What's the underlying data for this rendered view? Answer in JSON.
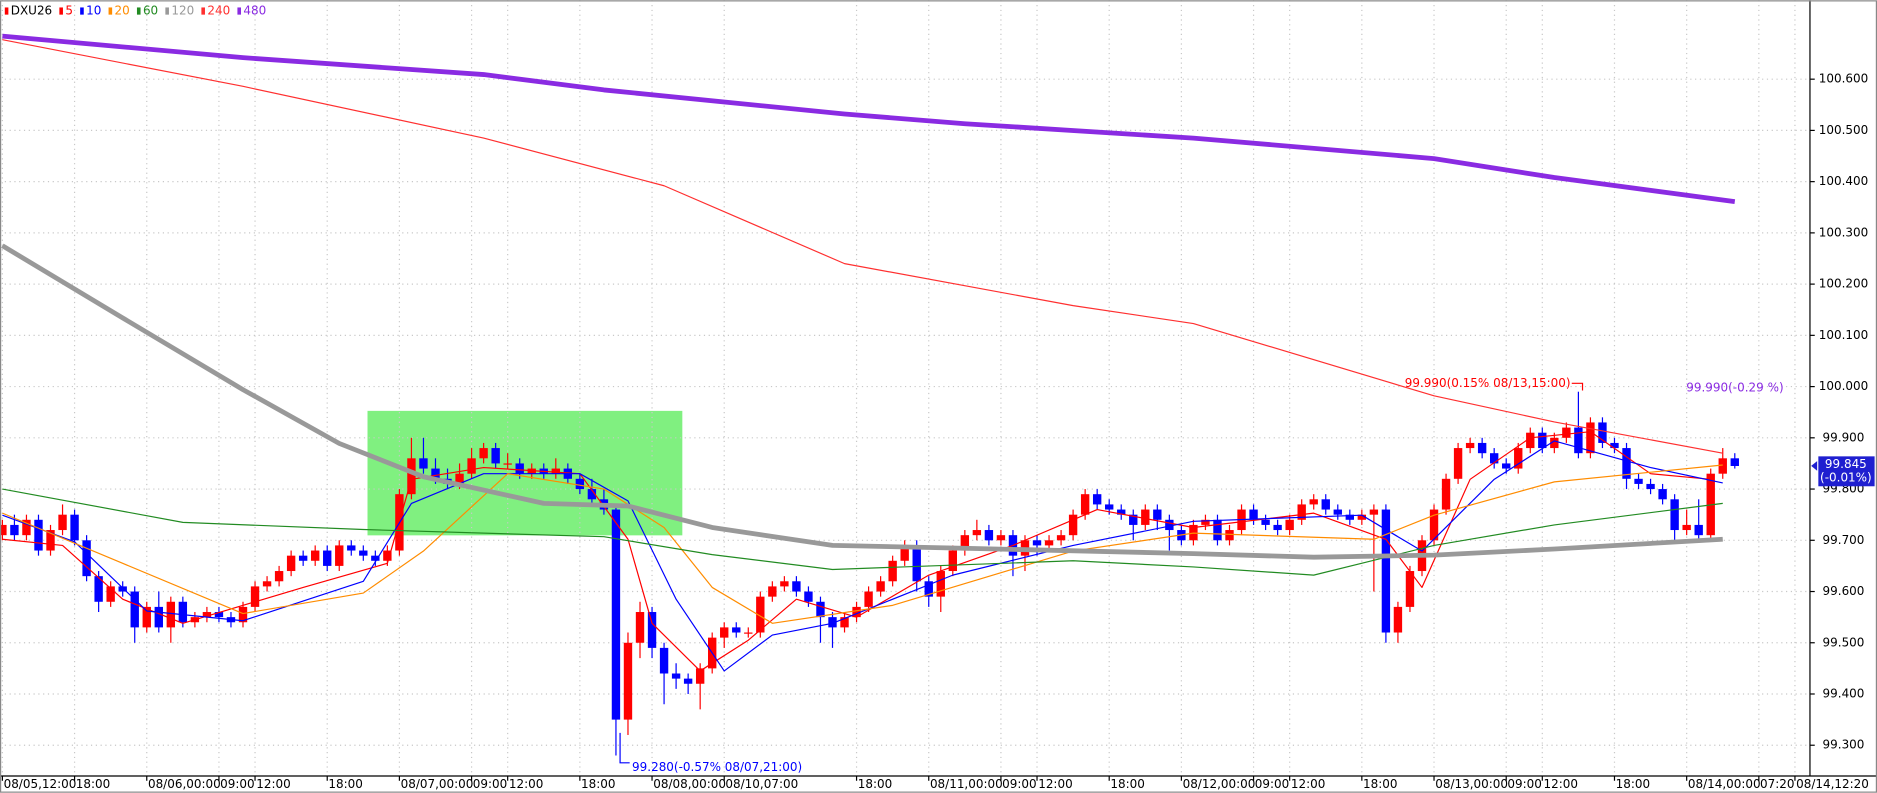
{
  "chart_data": {
    "type": "candlestick",
    "name": "DXU26",
    "up_color": "#ff0000",
    "down_color": "#0000ff",
    "legend": "top-left",
    "grid": true,
    "ylim": [
      99.24,
      100.754
    ],
    "yticks": [
      {
        "value": 99.3,
        "label": "99.300"
      },
      {
        "value": 99.4,
        "label": "99.400"
      },
      {
        "value": 99.5,
        "label": "99.500"
      },
      {
        "value": 99.6,
        "label": "99.600"
      },
      {
        "value": 99.7,
        "label": "99.700"
      },
      {
        "value": 99.8,
        "label": "99.800"
      },
      {
        "value": 99.9,
        "label": "99.900"
      },
      {
        "value": 100.0,
        "label": "100.000"
      },
      {
        "value": 100.1,
        "label": "100.100"
      },
      {
        "value": 100.2,
        "label": "100.200"
      },
      {
        "value": 100.3,
        "label": "100.300"
      },
      {
        "value": 100.4,
        "label": "100.400"
      },
      {
        "value": 100.5,
        "label": "100.500"
      },
      {
        "value": 100.6,
        "label": "100.600"
      }
    ],
    "categories": [
      "08/05,12:00",
      null,
      null,
      null,
      null,
      null,
      "18:00",
      null,
      null,
      null,
      null,
      null,
      "08/06,00:00",
      null,
      null,
      null,
      null,
      null,
      "09:00",
      null,
      null,
      "12:00",
      null,
      null,
      null,
      null,
      null,
      "18:00",
      null,
      null,
      null,
      null,
      null,
      "08/07,00:00",
      null,
      null,
      null,
      null,
      null,
      "09:00",
      null,
      null,
      "12:00",
      null,
      null,
      null,
      null,
      null,
      "18:00",
      null,
      null,
      null,
      null,
      null,
      "08/08,00:00",
      null,
      null,
      null,
      null,
      null,
      "08/10,07:00",
      null,
      null,
      null,
      null,
      null,
      null,
      null,
      null,
      null,
      null,
      "18:00",
      null,
      null,
      null,
      null,
      null,
      "08/11,00:00",
      null,
      null,
      null,
      null,
      null,
      "09:00",
      null,
      null,
      "12:00",
      null,
      null,
      null,
      null,
      null,
      "18:00",
      null,
      null,
      null,
      null,
      null,
      "08/12,00:00",
      null,
      null,
      null,
      null,
      null,
      "09:00",
      null,
      null,
      "12:00",
      null,
      null,
      null,
      null,
      null,
      "18:00",
      null,
      null,
      null,
      null,
      null,
      "08/13,00:00",
      null,
      null,
      null,
      null,
      null,
      "09:00",
      null,
      null,
      "12:00",
      null,
      null,
      null,
      null,
      null,
      "18:00",
      null,
      null,
      null,
      null,
      null,
      "08/14,00:00",
      null,
      null,
      null,
      null,
      null,
      "07:20",
      null,
      null,
      "08/14,12:20"
    ],
    "ohlc": [
      [
        99.71,
        99.74,
        99.7,
        99.73
      ],
      [
        99.73,
        99.75,
        99.7,
        99.71
      ],
      [
        99.71,
        99.75,
        99.7,
        99.74
      ],
      [
        99.74,
        99.75,
        99.67,
        99.68
      ],
      [
        99.68,
        99.73,
        99.67,
        99.72
      ],
      [
        99.72,
        99.77,
        99.71,
        99.75
      ],
      [
        99.75,
        99.76,
        99.69,
        99.7
      ],
      [
        99.7,
        99.71,
        99.62,
        99.63
      ],
      [
        99.63,
        99.64,
        99.56,
        99.58
      ],
      [
        99.58,
        99.62,
        99.57,
        99.61
      ],
      [
        99.61,
        99.62,
        99.59,
        99.6
      ],
      [
        99.6,
        99.61,
        99.5,
        99.53
      ],
      [
        99.53,
        99.58,
        99.52,
        99.57
      ],
      [
        99.57,
        99.6,
        99.52,
        99.53
      ],
      [
        99.53,
        99.59,
        99.5,
        99.58
      ],
      [
        99.58,
        99.59,
        99.53,
        99.54
      ],
      [
        99.54,
        99.56,
        99.53,
        99.55
      ],
      [
        99.55,
        99.57,
        99.54,
        99.56
      ],
      [
        99.56,
        99.57,
        99.54,
        99.55
      ],
      [
        99.55,
        99.56,
        99.53,
        99.54
      ],
      [
        99.54,
        99.58,
        99.53,
        99.57
      ],
      [
        99.57,
        99.62,
        99.56,
        99.61
      ],
      [
        99.61,
        99.63,
        99.6,
        99.62
      ],
      [
        99.62,
        99.65,
        99.61,
        99.64
      ],
      [
        99.64,
        99.68,
        99.63,
        99.67
      ],
      [
        99.67,
        99.68,
        99.65,
        99.66
      ],
      [
        99.66,
        99.69,
        99.65,
        99.68
      ],
      [
        99.68,
        99.69,
        99.64,
        99.65
      ],
      [
        99.65,
        99.7,
        99.64,
        99.69
      ],
      [
        99.69,
        99.7,
        99.67,
        99.68
      ],
      [
        99.68,
        99.69,
        99.66,
        99.67
      ],
      [
        99.67,
        99.68,
        99.65,
        99.66
      ],
      [
        99.66,
        99.69,
        99.65,
        99.68
      ],
      [
        99.68,
        99.8,
        99.67,
        99.79
      ],
      [
        99.79,
        99.9,
        99.78,
        99.86
      ],
      [
        99.86,
        99.9,
        99.83,
        99.84
      ],
      [
        99.84,
        99.86,
        99.81,
        99.82
      ],
      [
        99.82,
        99.84,
        99.8,
        99.81
      ],
      [
        99.81,
        99.85,
        99.8,
        99.83
      ],
      [
        99.83,
        99.88,
        99.82,
        99.86
      ],
      [
        99.86,
        99.89,
        99.85,
        99.88
      ],
      [
        99.88,
        99.89,
        99.84,
        99.85
      ],
      [
        99.85,
        99.87,
        99.84,
        99.85
      ],
      [
        99.85,
        99.86,
        99.82,
        99.83
      ],
      [
        99.83,
        99.85,
        99.82,
        99.84
      ],
      [
        99.84,
        99.85,
        99.82,
        99.83
      ],
      [
        99.83,
        99.86,
        99.82,
        99.84
      ],
      [
        99.84,
        99.85,
        99.81,
        99.82
      ],
      [
        99.82,
        99.83,
        99.79,
        99.8
      ],
      [
        99.8,
        99.82,
        99.77,
        99.78
      ],
      [
        99.78,
        99.8,
        99.75,
        99.76
      ],
      [
        99.76,
        99.77,
        99.28,
        99.35
      ],
      [
        99.35,
        99.52,
        99.32,
        99.5
      ],
      [
        99.5,
        99.58,
        99.47,
        99.56
      ],
      [
        99.56,
        99.57,
        99.47,
        99.49
      ],
      [
        99.49,
        99.5,
        99.38,
        99.44
      ],
      [
        99.44,
        99.46,
        99.41,
        99.43
      ],
      [
        99.43,
        99.44,
        99.4,
        99.42
      ],
      [
        99.42,
        99.46,
        99.37,
        99.45
      ],
      [
        99.45,
        99.52,
        99.44,
        99.51
      ],
      [
        99.51,
        99.54,
        99.49,
        99.53
      ],
      [
        99.53,
        99.54,
        99.51,
        99.52
      ],
      [
        99.52,
        99.53,
        99.51,
        99.52
      ],
      [
        99.52,
        99.6,
        99.51,
        99.59
      ],
      [
        99.59,
        99.62,
        99.58,
        99.61
      ],
      [
        99.61,
        99.63,
        99.6,
        99.62
      ],
      [
        99.62,
        99.63,
        99.59,
        99.6
      ],
      [
        99.6,
        99.61,
        99.57,
        99.58
      ],
      [
        99.58,
        99.59,
        99.5,
        99.55
      ],
      [
        99.55,
        99.56,
        99.49,
        99.53
      ],
      [
        99.53,
        99.56,
        99.52,
        99.55
      ],
      [
        99.55,
        99.58,
        99.54,
        99.57
      ],
      [
        99.57,
        99.61,
        99.56,
        99.6
      ],
      [
        99.6,
        99.63,
        99.59,
        99.62
      ],
      [
        99.62,
        99.67,
        99.61,
        99.66
      ],
      [
        99.66,
        99.7,
        99.65,
        99.69
      ],
      [
        99.69,
        99.7,
        99.6,
        99.62
      ],
      [
        99.62,
        99.63,
        99.57,
        99.59
      ],
      [
        99.59,
        99.65,
        99.56,
        99.64
      ],
      [
        99.64,
        99.69,
        99.63,
        99.68
      ],
      [
        99.68,
        99.72,
        99.67,
        99.71
      ],
      [
        99.71,
        99.74,
        99.7,
        99.72
      ],
      [
        99.72,
        99.73,
        99.69,
        99.7
      ],
      [
        99.7,
        99.72,
        99.69,
        99.71
      ],
      [
        99.71,
        99.72,
        99.63,
        99.67
      ],
      [
        99.67,
        99.71,
        99.64,
        99.7
      ],
      [
        99.7,
        99.71,
        99.67,
        99.69
      ],
      [
        99.69,
        99.71,
        99.68,
        99.7
      ],
      [
        99.7,
        99.72,
        99.69,
        99.71
      ],
      [
        99.71,
        99.76,
        99.7,
        99.75
      ],
      [
        99.75,
        99.8,
        99.74,
        99.79
      ],
      [
        99.79,
        99.8,
        99.76,
        99.77
      ],
      [
        99.77,
        99.78,
        99.75,
        99.76
      ],
      [
        99.76,
        99.77,
        99.74,
        99.75
      ],
      [
        99.75,
        99.76,
        99.7,
        99.73
      ],
      [
        99.73,
        99.77,
        99.72,
        99.76
      ],
      [
        99.76,
        99.77,
        99.72,
        99.74
      ],
      [
        99.74,
        99.75,
        99.68,
        99.72
      ],
      [
        99.72,
        99.73,
        99.69,
        99.7
      ],
      [
        99.7,
        99.74,
        99.69,
        99.73
      ],
      [
        99.73,
        99.75,
        99.72,
        99.74
      ],
      [
        99.74,
        99.75,
        99.69,
        99.7
      ],
      [
        99.7,
        99.73,
        99.69,
        99.72
      ],
      [
        99.72,
        99.77,
        99.71,
        99.76
      ],
      [
        99.76,
        99.77,
        99.73,
        99.74
      ],
      [
        99.74,
        99.75,
        99.72,
        99.73
      ],
      [
        99.73,
        99.74,
        99.71,
        99.72
      ],
      [
        99.72,
        99.75,
        99.71,
        99.74
      ],
      [
        99.74,
        99.78,
        99.73,
        99.77
      ],
      [
        99.77,
        99.79,
        99.76,
        99.78
      ],
      [
        99.78,
        99.79,
        99.75,
        99.76
      ],
      [
        99.76,
        99.77,
        99.74,
        99.75
      ],
      [
        99.75,
        99.76,
        99.73,
        99.74
      ],
      [
        99.74,
        99.76,
        99.73,
        99.75
      ],
      [
        99.75,
        99.77,
        99.6,
        99.76
      ],
      [
        99.76,
        99.77,
        99.5,
        99.52
      ],
      [
        99.52,
        99.58,
        99.5,
        99.57
      ],
      [
        99.57,
        99.65,
        99.56,
        99.64
      ],
      [
        99.64,
        99.71,
        99.63,
        99.7
      ],
      [
        99.7,
        99.77,
        99.69,
        99.76
      ],
      [
        99.76,
        99.83,
        99.75,
        99.82
      ],
      [
        99.82,
        99.89,
        99.81,
        99.88
      ],
      [
        99.88,
        99.9,
        99.87,
        99.89
      ],
      [
        99.89,
        99.9,
        99.86,
        99.87
      ],
      [
        99.87,
        99.88,
        99.84,
        99.85
      ],
      [
        99.85,
        99.86,
        99.83,
        99.84
      ],
      [
        99.84,
        99.89,
        99.83,
        99.88
      ],
      [
        99.88,
        99.92,
        99.87,
        99.91
      ],
      [
        99.91,
        99.92,
        99.87,
        99.88
      ],
      [
        99.88,
        99.91,
        99.87,
        99.9
      ],
      [
        99.9,
        99.93,
        99.89,
        99.92
      ],
      [
        99.92,
        99.99,
        99.86,
        99.87
      ],
      [
        99.87,
        99.94,
        99.86,
        99.93
      ],
      [
        99.93,
        99.94,
        99.88,
        99.89
      ],
      [
        99.89,
        99.9,
        99.87,
        99.88
      ],
      [
        99.88,
        99.89,
        99.8,
        99.82
      ],
      [
        99.82,
        99.83,
        99.8,
        99.81
      ],
      [
        99.81,
        99.82,
        99.79,
        99.8
      ],
      [
        99.8,
        99.81,
        99.77,
        99.78
      ],
      [
        99.78,
        99.79,
        99.7,
        99.72
      ],
      [
        99.72,
        99.76,
        99.71,
        99.73
      ],
      [
        99.73,
        99.78,
        99.7,
        99.71
      ],
      [
        99.71,
        99.84,
        99.7,
        99.83
      ],
      [
        99.83,
        99.88,
        99.82,
        99.86
      ],
      [
        99.86,
        99.87,
        99.84,
        99.845
      ],
      null,
      null,
      null,
      null,
      null
    ],
    "series": [
      {
        "name": "5",
        "color": "#ff0000",
        "line_width": 1,
        "x": [
          0,
          5,
          10,
          15,
          25,
          32,
          34,
          40,
          48,
          52,
          54,
          58,
          62,
          66,
          71,
          77,
          84,
          91,
          99,
          109,
          115,
          118,
          122,
          127,
          132,
          137,
          142
        ],
        "values": [
          99.702,
          99.69,
          99.585,
          99.538,
          99.608,
          99.655,
          99.819,
          99.842,
          99.83,
          99.702,
          99.538,
          99.445,
          99.505,
          99.585,
          99.55,
          99.632,
          99.69,
          99.76,
          99.725,
          99.753,
          99.702,
          99.608,
          99.819,
          99.9,
          99.912,
          99.83,
          99.819
        ]
      },
      {
        "name": "10",
        "color": "#0000ff",
        "line_width": 1,
        "x": [
          0,
          6,
          12,
          20,
          30,
          34,
          40,
          48,
          52,
          56,
          60,
          64,
          69,
          79,
          89,
          99,
          113,
          118,
          124,
          129,
          137,
          143
        ],
        "values": [
          99.749,
          99.697,
          99.562,
          99.543,
          99.62,
          99.772,
          99.83,
          99.83,
          99.777,
          99.585,
          99.445,
          99.515,
          99.538,
          99.632,
          99.69,
          99.737,
          99.749,
          99.679,
          99.819,
          99.894,
          99.842,
          99.812
        ]
      },
      {
        "name": "20",
        "color": "#ff8c00",
        "line_width": 1,
        "x": [
          0,
          10,
          20,
          30,
          35,
          42,
          50,
          55,
          59,
          64,
          74,
          89,
          99,
          114,
          119,
          129,
          143
        ],
        "values": [
          99.753,
          99.655,
          99.557,
          99.597,
          99.679,
          99.83,
          99.8,
          99.725,
          99.608,
          99.538,
          99.573,
          99.679,
          99.714,
          99.702,
          99.749,
          99.814,
          99.847
        ]
      },
      {
        "name": "60",
        "color": "#228b22",
        "line_width": 1,
        "x": [
          0,
          15,
          30,
          50,
          59,
          69,
          89,
          99,
          109,
          119,
          129,
          143
        ],
        "values": [
          99.8,
          99.735,
          99.721,
          99.707,
          99.672,
          99.643,
          99.66,
          99.648,
          99.632,
          99.69,
          99.73,
          99.772
        ]
      },
      {
        "name": "120",
        "color": "#999999",
        "line_width": 4,
        "x": [
          0,
          10,
          20,
          28,
          35,
          45,
          52,
          59,
          69,
          79,
          99,
          109,
          119,
          129,
          143
        ],
        "values": [
          100.275,
          100.134,
          99.994,
          99.889,
          99.824,
          99.772,
          99.767,
          99.725,
          99.69,
          99.685,
          99.674,
          99.667,
          99.671,
          99.683,
          99.702
        ]
      },
      {
        "name": "240",
        "color": "#ff3030",
        "line_width": 1,
        "x": [
          0,
          20,
          40,
          55,
          70,
          89,
          99,
          119,
          129,
          143
        ],
        "values": [
          100.677,
          100.586,
          100.485,
          100.392,
          100.24,
          100.158,
          100.123,
          99.982,
          99.931,
          99.87
        ]
      },
      {
        "name": "480",
        "color": "#8a2be2",
        "line_width": 4,
        "x": [
          0,
          20,
          40,
          50,
          70,
          80,
          99,
          119,
          129,
          144
        ],
        "values": [
          100.684,
          100.642,
          100.609,
          100.579,
          100.532,
          100.513,
          100.485,
          100.445,
          100.408,
          100.361
        ]
      }
    ],
    "annotations": [
      {
        "text": "99.990(0.15% 08/13,15:00)",
        "color": "#ff0000"
      },
      {
        "text": "99.280(-0.57% 08/07,21:00)",
        "color": "#0000ff"
      },
      {
        "text": "99.990(-0.29 %)",
        "color": "#8a2be2"
      }
    ],
    "current_change": "(-0.01%)"
  }
}
